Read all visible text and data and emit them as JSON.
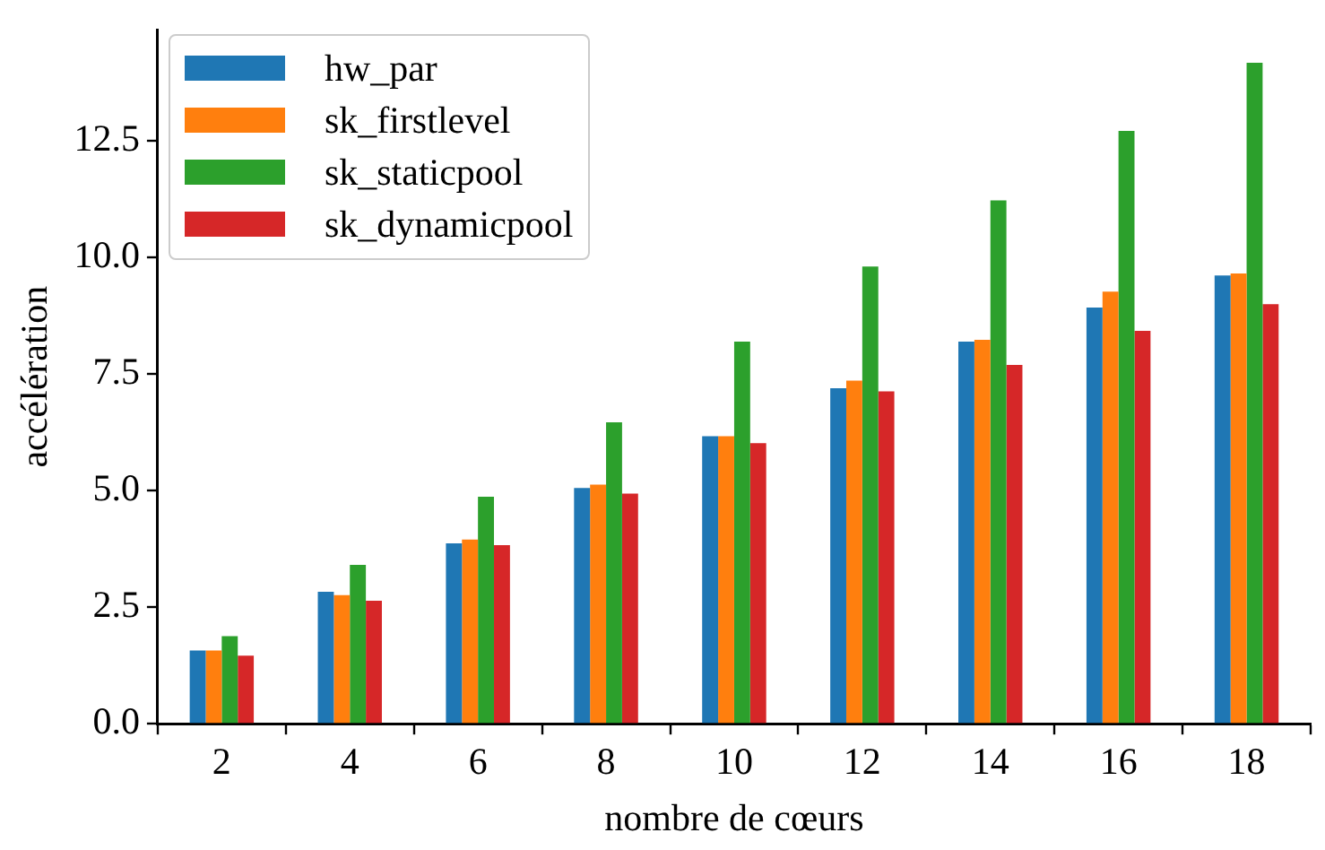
{
  "chart_data": {
    "type": "bar",
    "xlabel": "nombre de cœurs",
    "ylabel": "accélération",
    "categories": [
      "2",
      "4",
      "6",
      "8",
      "10",
      "12",
      "14",
      "16",
      "18"
    ],
    "series": [
      {
        "name": "hw_par",
        "color": "#1f77b4",
        "values": [
          1.57,
          2.83,
          3.87,
          5.06,
          6.17,
          7.2,
          8.2,
          8.93,
          9.62
        ]
      },
      {
        "name": "sk_firstlevel",
        "color": "#ff7f0e",
        "values": [
          1.57,
          2.76,
          3.95,
          5.13,
          6.17,
          7.36,
          8.24,
          9.27,
          9.66
        ]
      },
      {
        "name": "sk_staticpool",
        "color": "#2ca02c",
        "values": [
          1.88,
          3.41,
          4.87,
          6.47,
          8.2,
          9.81,
          11.23,
          12.72,
          14.18
        ]
      },
      {
        "name": "sk_dynamicpool",
        "color": "#d62728",
        "values": [
          1.46,
          2.64,
          3.83,
          4.94,
          6.02,
          7.13,
          7.7,
          8.43,
          9.0
        ]
      }
    ],
    "ylim": [
      0,
      14.89
    ],
    "yticks": [
      {
        "value": 0,
        "label": "0.0"
      },
      {
        "value": 2.5,
        "label": "2.5"
      },
      {
        "value": 5,
        "label": "5.0"
      },
      {
        "value": 7.5,
        "label": "7.5"
      },
      {
        "value": 10,
        "label": "10.0"
      },
      {
        "value": 12.5,
        "label": "12.5"
      }
    ],
    "grid": false,
    "legend": "top left"
  }
}
